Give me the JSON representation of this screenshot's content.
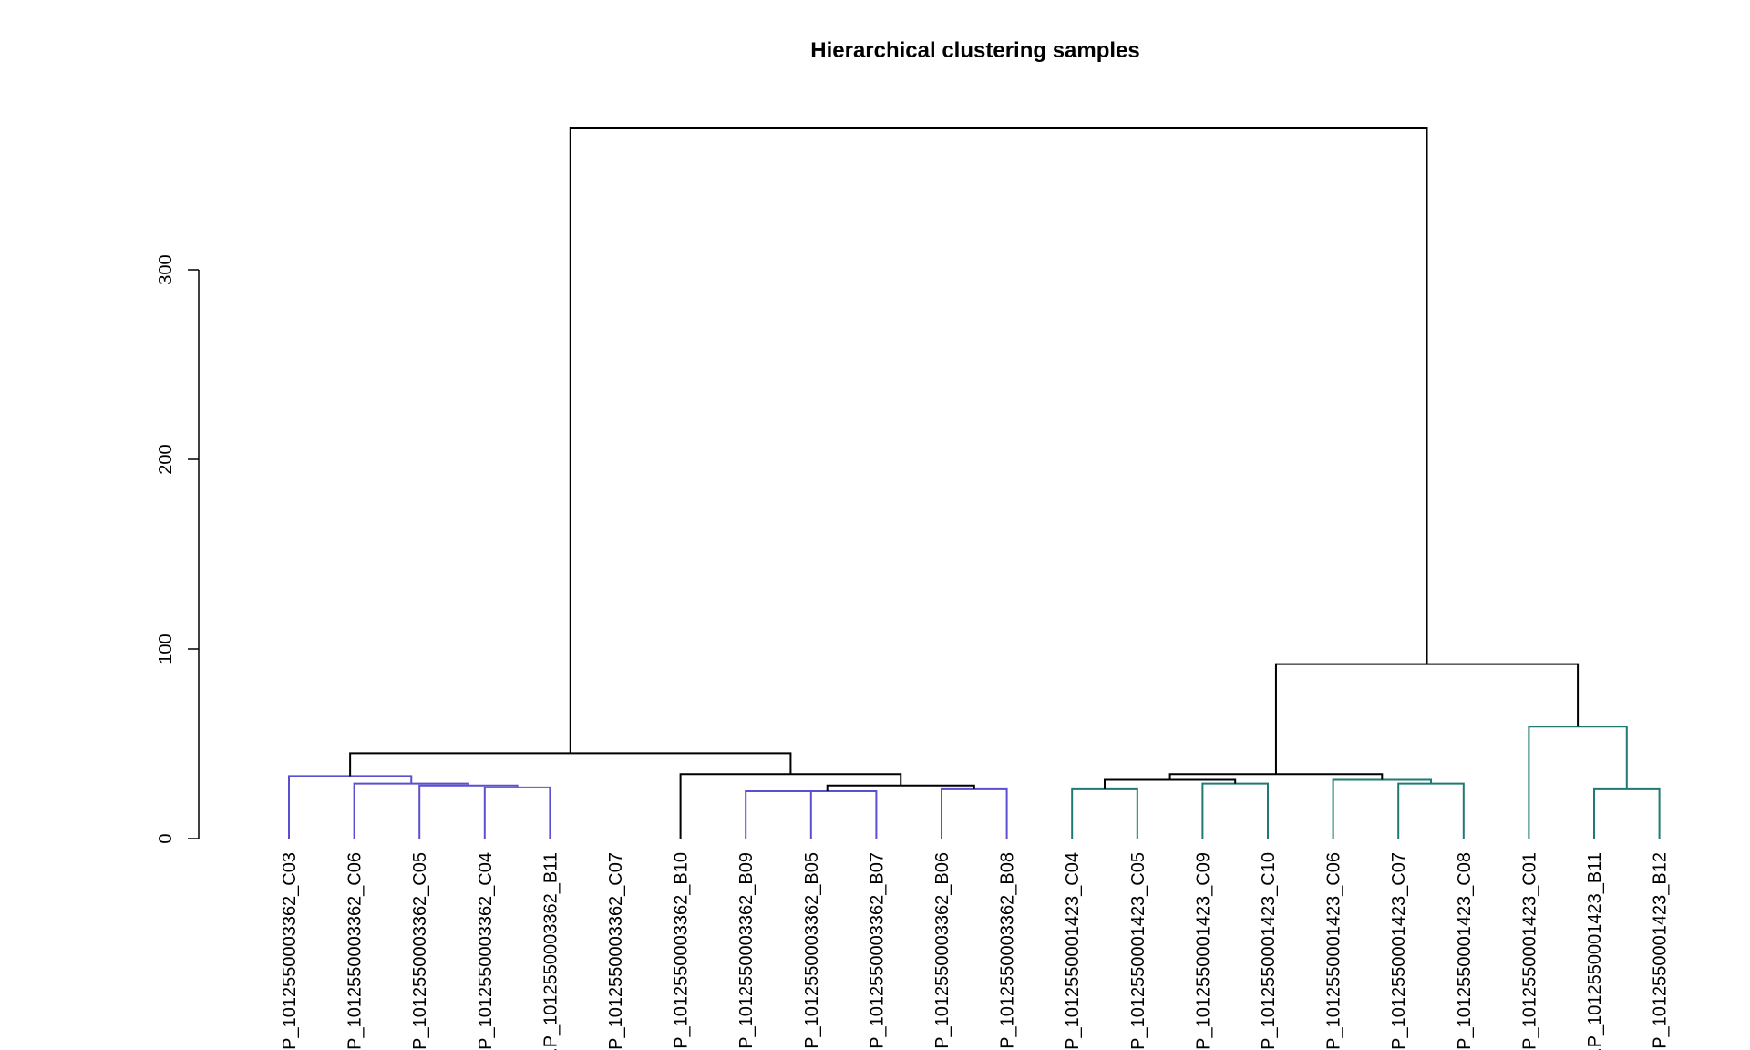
{
  "chart_data": {
    "type": "dendrogram",
    "title": "Hierarchical clustering samples",
    "xlabel": "",
    "ylabel": "",
    "ylim": [
      0,
      375
    ],
    "y_ticks": [
      0,
      100,
      200,
      300
    ],
    "y_tick_labels": [
      "0",
      "100",
      "200",
      "300"
    ],
    "grid": false,
    "colors": {
      "cluster_a": "#5b4fd1",
      "cluster_b": "#1e7a73",
      "tree": "#000000"
    },
    "leaves": [
      "...P_1012550003362_C03",
      "...P_1012550003362_C06",
      "...P_1012550003362_C05",
      "...P_1012550003362_C04",
      "...P_1012550003362_B11",
      "...P_1012550003362_C07",
      "...P_1012550003362_B10",
      "...P_1012550003362_B09",
      "...P_1012550003362_B05",
      "...P_1012550003362_B07",
      "...P_1012550003362_B06",
      "...P_1012550003362_B08",
      "...P_1012550001423_C04",
      "...P_1012550001423_C05",
      "...P_1012550001423_C09",
      "...P_1012550001423_C10",
      "...P_1012550001423_C06",
      "...P_1012550001423_C07",
      "...P_1012550001423_C08",
      "...P_1012550001423_C01",
      "...P_1012550001423_B11",
      "...P_1012550001423_B12"
    ],
    "merges": [
      {
        "id": "m1",
        "left": "L4",
        "right": "L5",
        "height": 27,
        "color": "cluster_a"
      },
      {
        "id": "m2",
        "left": "L3",
        "right": "m1",
        "height": 28,
        "color": "cluster_a"
      },
      {
        "id": "m3",
        "left": "L2",
        "right": "m2",
        "height": 29,
        "color": "cluster_a"
      },
      {
        "id": "m4",
        "left": "L1",
        "right": "m3",
        "height": 33,
        "color": "cluster_a"
      },
      {
        "id": "m5",
        "left": "L8",
        "right": "L9",
        "height": 25,
        "color": "cluster_a"
      },
      {
        "id": "m6",
        "left": "L10",
        "right": "m5",
        "height": 25,
        "color": "cluster_a"
      },
      {
        "id": "m7",
        "left": "L11",
        "right": "L12",
        "height": 26,
        "color": "cluster_a"
      },
      {
        "id": "m8",
        "left": "m6",
        "right": "m7",
        "height": 28,
        "color": "tree"
      },
      {
        "id": "m9",
        "left": "L7",
        "right": "m8",
        "height": 34,
        "color": "tree"
      },
      {
        "id": "m10",
        "left": "m4",
        "right": "m9",
        "height": 45,
        "color": "tree"
      },
      {
        "id": "m11",
        "left": "L13",
        "right": "L14",
        "height": 26,
        "color": "cluster_b"
      },
      {
        "id": "m12",
        "left": "L15",
        "right": "L16",
        "height": 29,
        "color": "cluster_b"
      },
      {
        "id": "m13",
        "left": "m11",
        "right": "m12",
        "height": 31,
        "color": "tree"
      },
      {
        "id": "m14",
        "left": "L18",
        "right": "L19",
        "height": 29,
        "color": "cluster_b"
      },
      {
        "id": "m15",
        "left": "L17",
        "right": "m14",
        "height": 31,
        "color": "cluster_b"
      },
      {
        "id": "m16",
        "left": "m13",
        "right": "m15",
        "height": 34,
        "color": "tree"
      },
      {
        "id": "m17",
        "left": "L21",
        "right": "L22",
        "height": 26,
        "color": "cluster_b"
      },
      {
        "id": "m18",
        "left": "L20",
        "right": "m17",
        "height": 59,
        "color": "cluster_b"
      },
      {
        "id": "m19",
        "left": "m16",
        "right": "m18",
        "height": 92,
        "color": "tree"
      },
      {
        "id": "m20",
        "left": "m10",
        "right": "m19",
        "height": 375,
        "color": "tree"
      }
    ]
  }
}
